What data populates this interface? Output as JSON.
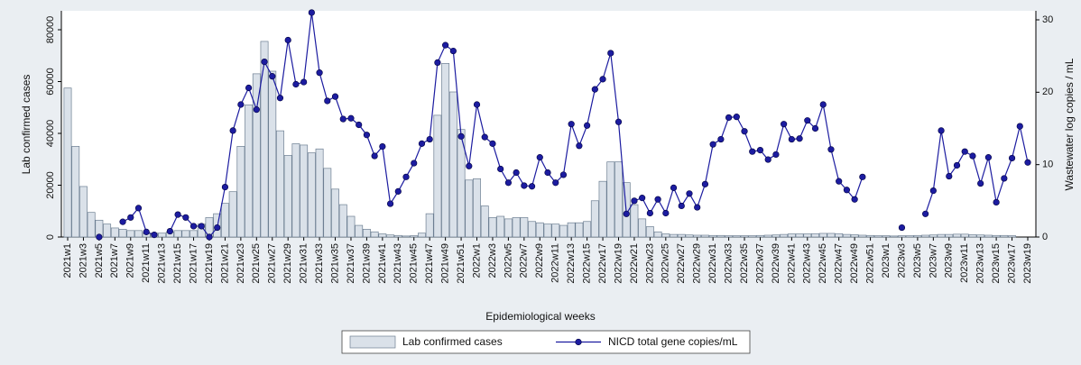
{
  "chart_data": {
    "type": "bar-line",
    "x_label": "Epidemiological weeks",
    "y_label": "Lab confirmed cases",
    "y2_label": "Wastewater log copies / mL",
    "categories": [
      "2021w1",
      null,
      "2021w3",
      null,
      "2021w5",
      null,
      "2021w7",
      null,
      "2021w9",
      null,
      "2021w11",
      null,
      "2021w13",
      null,
      "2021w15",
      null,
      "2021w17",
      null,
      "2021w19",
      null,
      "2021w21",
      null,
      "2021w23",
      null,
      "2021w25",
      null,
      "2021w27",
      null,
      "2021w29",
      null,
      "2021w31",
      null,
      "2021w33",
      null,
      "2021w35",
      null,
      "2021w37",
      null,
      "2021w39",
      null,
      "2021w41",
      null,
      "2021w43",
      null,
      "2021w45",
      null,
      "2021w47",
      null,
      "2021w49",
      null,
      "2021w51",
      null,
      "2022w1",
      null,
      "2022w3",
      null,
      "2022w5",
      null,
      "2022w7",
      null,
      "2022w9",
      null,
      "2022w11",
      null,
      "2022w13",
      null,
      "2022w15",
      null,
      "2022w17",
      null,
      "2022w19",
      null,
      "2022w21",
      null,
      "2022w23",
      null,
      "2022w25",
      null,
      "2022w27",
      null,
      "2022w29",
      null,
      "2022w31",
      null,
      "2022w33",
      null,
      "2022w35",
      null,
      "2022w37",
      null,
      "2022w39",
      null,
      "2022w41",
      null,
      "2022w43",
      null,
      "2022w45",
      null,
      "2022w47",
      null,
      "2022w49",
      null,
      "2022w51",
      null,
      "2023w1",
      null,
      "2023w3",
      null,
      "2023w5",
      null,
      "2023w7",
      null,
      "2023w9",
      null,
      "2023w11",
      null,
      "2023w13",
      null,
      "2023w15",
      null,
      "2023w17",
      null,
      "2023w19"
    ],
    "series": [
      {
        "name": "Lab confirmed cases",
        "type": "bar",
        "color": "#dae1e9",
        "values": [
          57500,
          35000,
          19500,
          9500,
          6500,
          5000,
          3500,
          3000,
          2500,
          2500,
          1500,
          1500,
          1500,
          2000,
          2500,
          2500,
          2500,
          5000,
          7500,
          9000,
          13000,
          17500,
          35000,
          51000,
          63000,
          75500,
          64000,
          41000,
          31500,
          36000,
          35500,
          32500,
          34000,
          26500,
          18500,
          12500,
          8000,
          4500,
          3000,
          2000,
          1200,
          800,
          600,
          400,
          500,
          1500,
          9000,
          47000,
          67000,
          56000,
          41500,
          22000,
          22500,
          12000,
          7500,
          8000,
          7000,
          7500,
          7500,
          6000,
          5500,
          5000,
          5000,
          4500,
          5500,
          5500,
          6000,
          14000,
          21500,
          29000,
          29000,
          21000,
          12500,
          7000,
          4000,
          2000,
          1200,
          1000,
          1000,
          800,
          700,
          700,
          600,
          600,
          500,
          500,
          500,
          500,
          600,
          700,
          800,
          1000,
          1200,
          1200,
          1200,
          1300,
          1400,
          1400,
          1300,
          1000,
          900,
          700,
          600,
          500,
          500,
          400,
          500,
          500,
          600,
          700,
          800,
          1000,
          1000,
          1100,
          1100,
          900,
          800,
          700,
          600,
          600,
          500,
          null,
          null
        ]
      },
      {
        "name": "NICD total gene copies/mL",
        "type": "line",
        "axis": "y2",
        "color": "#1c1ca0",
        "values": [
          null,
          null,
          null,
          null,
          0,
          null,
          null,
          2.1,
          2.7,
          4.0,
          0.7,
          0.3,
          null,
          0.8,
          3.1,
          2.7,
          1.5,
          1.5,
          0,
          1.3,
          6.9,
          14.7,
          18.3,
          20.6,
          17.6,
          24.2,
          22.2,
          19.2,
          27.2,
          21.1,
          21.4,
          31,
          22.7,
          18.8,
          19.4,
          16.3,
          16.4,
          15.5,
          14.1,
          11.2,
          12.5,
          4.6,
          6.3,
          8.3,
          10.2,
          12.9,
          13.5,
          24.1,
          26.5,
          25.7,
          13.9,
          9.8,
          18.3,
          13.8,
          12.9,
          9.4,
          7.5,
          8.9,
          7.1,
          7,
          11,
          8.9,
          7.5,
          8.6,
          15.6,
          12.6,
          15.4,
          20.4,
          21.8,
          25.4,
          15.9,
          3.2,
          5,
          5.4,
          3.3,
          5.2,
          3.3,
          6.8,
          4.3,
          6,
          4.1,
          7.3,
          12.8,
          13.5,
          16.5,
          16.6,
          14.6,
          11.8,
          12,
          10.7,
          11.4,
          15.6,
          13.5,
          13.6,
          16.1,
          15,
          18.3,
          12.1,
          7.7,
          6.5,
          5.2,
          8.3,
          null,
          null,
          null,
          null,
          1.3,
          null,
          null,
          3.2,
          6.4,
          14.7,
          8.4,
          9.9,
          11.8,
          11.2,
          7.4,
          11,
          4.8,
          8.1,
          10.9,
          15.3,
          10.3
        ]
      }
    ],
    "ylim": [
      0,
      80000
    ],
    "yticks": [
      0,
      20000,
      40000,
      60000,
      80000
    ],
    "y2lim": [
      0,
      30
    ],
    "y2ticks": [
      0,
      10,
      20,
      30
    ]
  }
}
